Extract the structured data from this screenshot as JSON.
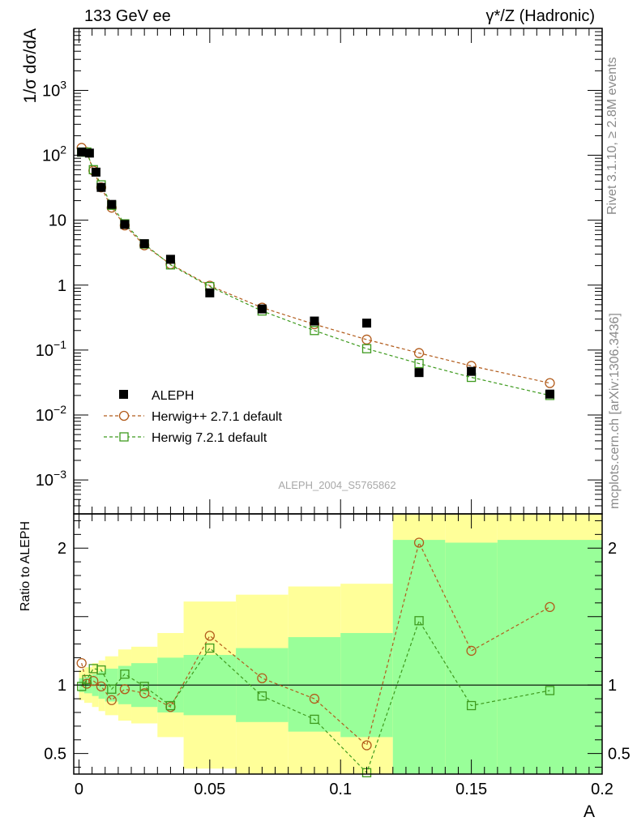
{
  "header": {
    "left": "133 GeV ee",
    "right": "γ*/Z (Hadronic)"
  },
  "side_labels": {
    "rivet": "Rivet 3.1.10, ≥ 2.8M events",
    "mcplots": "mcplots.cern.ch [arXiv:1306.3436]"
  },
  "watermark": "ALEPH_2004_S5765862",
  "colors": {
    "data": "#000000",
    "herwigpp": "#b25c1c",
    "herwig7": "#3e9a1e",
    "band_inner": "#99ff99",
    "band_outer": "#ffff99"
  },
  "chart_data": [
    {
      "type": "scatter",
      "panel": "main",
      "ylabel": "1/σ dσ/dA",
      "yscale": "log",
      "ylim": [
        0.0003,
        9000
      ],
      "xlim": [
        -0.002,
        0.2
      ],
      "yticks": [
        {
          "value": 0.001,
          "base": "10",
          "exp": "−3"
        },
        {
          "value": 0.01,
          "base": "10",
          "exp": "−2"
        },
        {
          "value": 0.1,
          "base": "10",
          "exp": "−1"
        },
        {
          "value": 1,
          "base": "1",
          "exp": ""
        },
        {
          "value": 10,
          "base": "10",
          "exp": ""
        },
        {
          "value": 100,
          "base": "10",
          "exp": "2"
        },
        {
          "value": 1000,
          "base": "10",
          "exp": "3"
        }
      ],
      "legend_position": "bottom-left",
      "series": [
        {
          "name": "ALEPH",
          "style": "data",
          "x": [
            0.001,
            0.004,
            0.0065,
            0.0085,
            0.0125,
            0.0175,
            0.025,
            0.035,
            0.05,
            0.07,
            0.09,
            0.11,
            0.13,
            0.15,
            0.18
          ],
          "y": [
            112,
            108,
            55,
            32,
            17.5,
            8.6,
            4.35,
            2.5,
            0.76,
            0.43,
            0.28,
            0.26,
            0.045,
            0.047,
            0.021
          ]
        },
        {
          "name": "Herwig++ 2.7.1 default",
          "style": "circle",
          "x": [
            0.001,
            0.003,
            0.0055,
            0.0085,
            0.0125,
            0.0175,
            0.025,
            0.035,
            0.05,
            0.07,
            0.09,
            0.11,
            0.13,
            0.15,
            0.18
          ],
          "y": [
            130,
            112,
            58,
            32,
            15.6,
            8.3,
            4.1,
            2.1,
            0.98,
            0.45,
            0.25,
            0.145,
            0.09,
            0.057,
            0.031
          ]
        },
        {
          "name": "Herwig 7.2.1 default",
          "style": "square",
          "x": [
            0.001,
            0.003,
            0.0055,
            0.0085,
            0.0125,
            0.0175,
            0.025,
            0.035,
            0.05,
            0.07,
            0.09,
            0.11,
            0.13,
            0.15,
            0.18
          ],
          "y": [
            112,
            112,
            60,
            35,
            17,
            8.8,
            4.3,
            2.05,
            0.95,
            0.4,
            0.2,
            0.105,
            0.062,
            0.038,
            0.02
          ]
        }
      ]
    },
    {
      "type": "line",
      "panel": "ratio",
      "ylabel": "Ratio to ALEPH",
      "xlabel": "A",
      "xlim": [
        -0.002,
        0.2
      ],
      "ylim": [
        0.35,
        2.25
      ],
      "xticks": [
        {
          "value": 0,
          "label": "0"
        },
        {
          "value": 0.05,
          "label": "0.05"
        },
        {
          "value": 0.1,
          "label": "0.1"
        },
        {
          "value": 0.15,
          "label": "0.15"
        },
        {
          "value": 0.2,
          "label": "0.2"
        }
      ],
      "yticks": [
        {
          "value": 0.5,
          "label": "0.5"
        },
        {
          "value": 1,
          "label": "1"
        },
        {
          "value": 2,
          "label": "2"
        }
      ],
      "bands": [
        {
          "x0": 0.0,
          "x1": 0.002,
          "inner": [
            0.95,
            1.05
          ],
          "outer": [
            0.89,
            1.11
          ]
        },
        {
          "x0": 0.002,
          "x1": 0.005,
          "inner": [
            0.94,
            1.06
          ],
          "outer": [
            0.87,
            1.13
          ]
        },
        {
          "x0": 0.005,
          "x1": 0.0075,
          "inner": [
            0.92,
            1.08
          ],
          "outer": [
            0.84,
            1.16
          ]
        },
        {
          "x0": 0.0075,
          "x1": 0.01,
          "inner": [
            0.9,
            1.1
          ],
          "outer": [
            0.81,
            1.18
          ]
        },
        {
          "x0": 0.01,
          "x1": 0.015,
          "inner": [
            0.88,
            1.12
          ],
          "outer": [
            0.78,
            1.21
          ]
        },
        {
          "x0": 0.015,
          "x1": 0.02,
          "inner": [
            0.86,
            1.14
          ],
          "outer": [
            0.74,
            1.26
          ]
        },
        {
          "x0": 0.02,
          "x1": 0.03,
          "inner": [
            0.84,
            1.16
          ],
          "outer": [
            0.72,
            1.28
          ]
        },
        {
          "x0": 0.03,
          "x1": 0.04,
          "inner": [
            0.8,
            1.2
          ],
          "outer": [
            0.62,
            1.38
          ]
        },
        {
          "x0": 0.04,
          "x1": 0.06,
          "inner": [
            0.78,
            1.22
          ],
          "outer": [
            0.39,
            1.61
          ]
        },
        {
          "x0": 0.06,
          "x1": 0.08,
          "inner": [
            0.73,
            1.27
          ],
          "outer": [
            0.35,
            1.66
          ]
        },
        {
          "x0": 0.08,
          "x1": 0.1,
          "inner": [
            0.66,
            1.35
          ],
          "outer": [
            0.35,
            1.72
          ]
        },
        {
          "x0": 0.1,
          "x1": 0.12,
          "inner": [
            0.62,
            1.38
          ],
          "outer": [
            0.35,
            1.74
          ]
        },
        {
          "x0": 0.12,
          "x1": 0.14,
          "inner": [
            0.35,
            2.06
          ],
          "outer": [
            0.35,
            2.25
          ]
        },
        {
          "x0": 0.14,
          "x1": 0.16,
          "inner": [
            0.35,
            2.04
          ],
          "outer": [
            0.35,
            2.25
          ]
        },
        {
          "x0": 0.16,
          "x1": 0.2,
          "inner": [
            0.35,
            2.06
          ],
          "outer": [
            0.35,
            2.25
          ]
        }
      ],
      "series": [
        {
          "name": "Herwig++ 2.7.1 default",
          "style": "circle",
          "x": [
            0.001,
            0.003,
            0.0055,
            0.0085,
            0.0125,
            0.0175,
            0.025,
            0.035,
            0.05,
            0.07,
            0.09,
            0.11,
            0.13,
            0.15,
            0.18
          ],
          "y": [
            1.16,
            1.01,
            1.03,
            0.99,
            0.89,
            0.97,
            0.94,
            0.84,
            1.36,
            1.05,
            0.9,
            0.56,
            2.04,
            1.25,
            1.57
          ]
        },
        {
          "name": "Herwig 7.2.1 default",
          "style": "square",
          "x": [
            0.001,
            0.003,
            0.0055,
            0.0085,
            0.0125,
            0.0175,
            0.025,
            0.035,
            0.05,
            0.07,
            0.09,
            0.11,
            0.13,
            0.15,
            0.18
          ],
          "y": [
            0.99,
            1.04,
            1.12,
            1.11,
            0.97,
            1.08,
            0.99,
            0.85,
            1.27,
            0.92,
            0.75,
            0.36,
            1.47,
            0.85,
            0.96
          ]
        }
      ]
    }
  ]
}
